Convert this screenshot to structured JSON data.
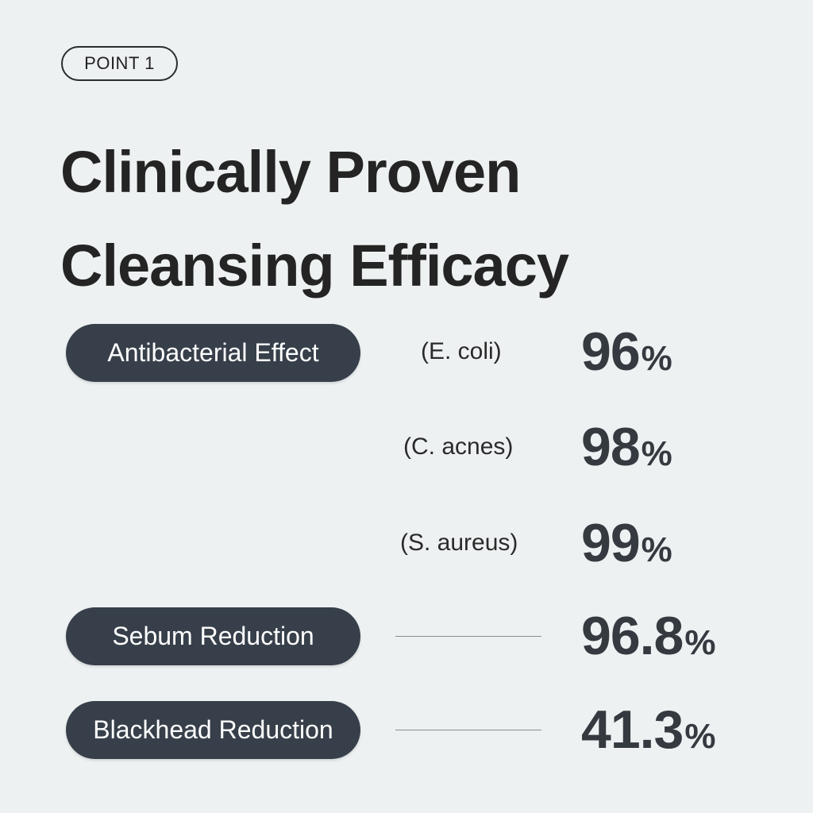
{
  "badge": {
    "label": "POINT 1"
  },
  "headline": {
    "line1": "Clinically Proven",
    "line2": "Cleansing Efficacy"
  },
  "results": [
    {
      "category": "Antibacterial Effect",
      "detail": "(E. coli)",
      "value": "96",
      "unit": "%"
    },
    {
      "category": "",
      "detail": "(C. acnes)",
      "value": "98",
      "unit": "%"
    },
    {
      "category": "",
      "detail": "(S. aureus)",
      "value": "99",
      "unit": "%"
    },
    {
      "category": "Sebum Reduction",
      "detail": "",
      "value": "96.8",
      "unit": "%"
    },
    {
      "category": "Blackhead Reduction",
      "detail": "",
      "value": "41.3",
      "unit": "%"
    }
  ],
  "colors": {
    "background": "#eef1f2",
    "pill": "#37404a",
    "value_text": "#343a40"
  }
}
